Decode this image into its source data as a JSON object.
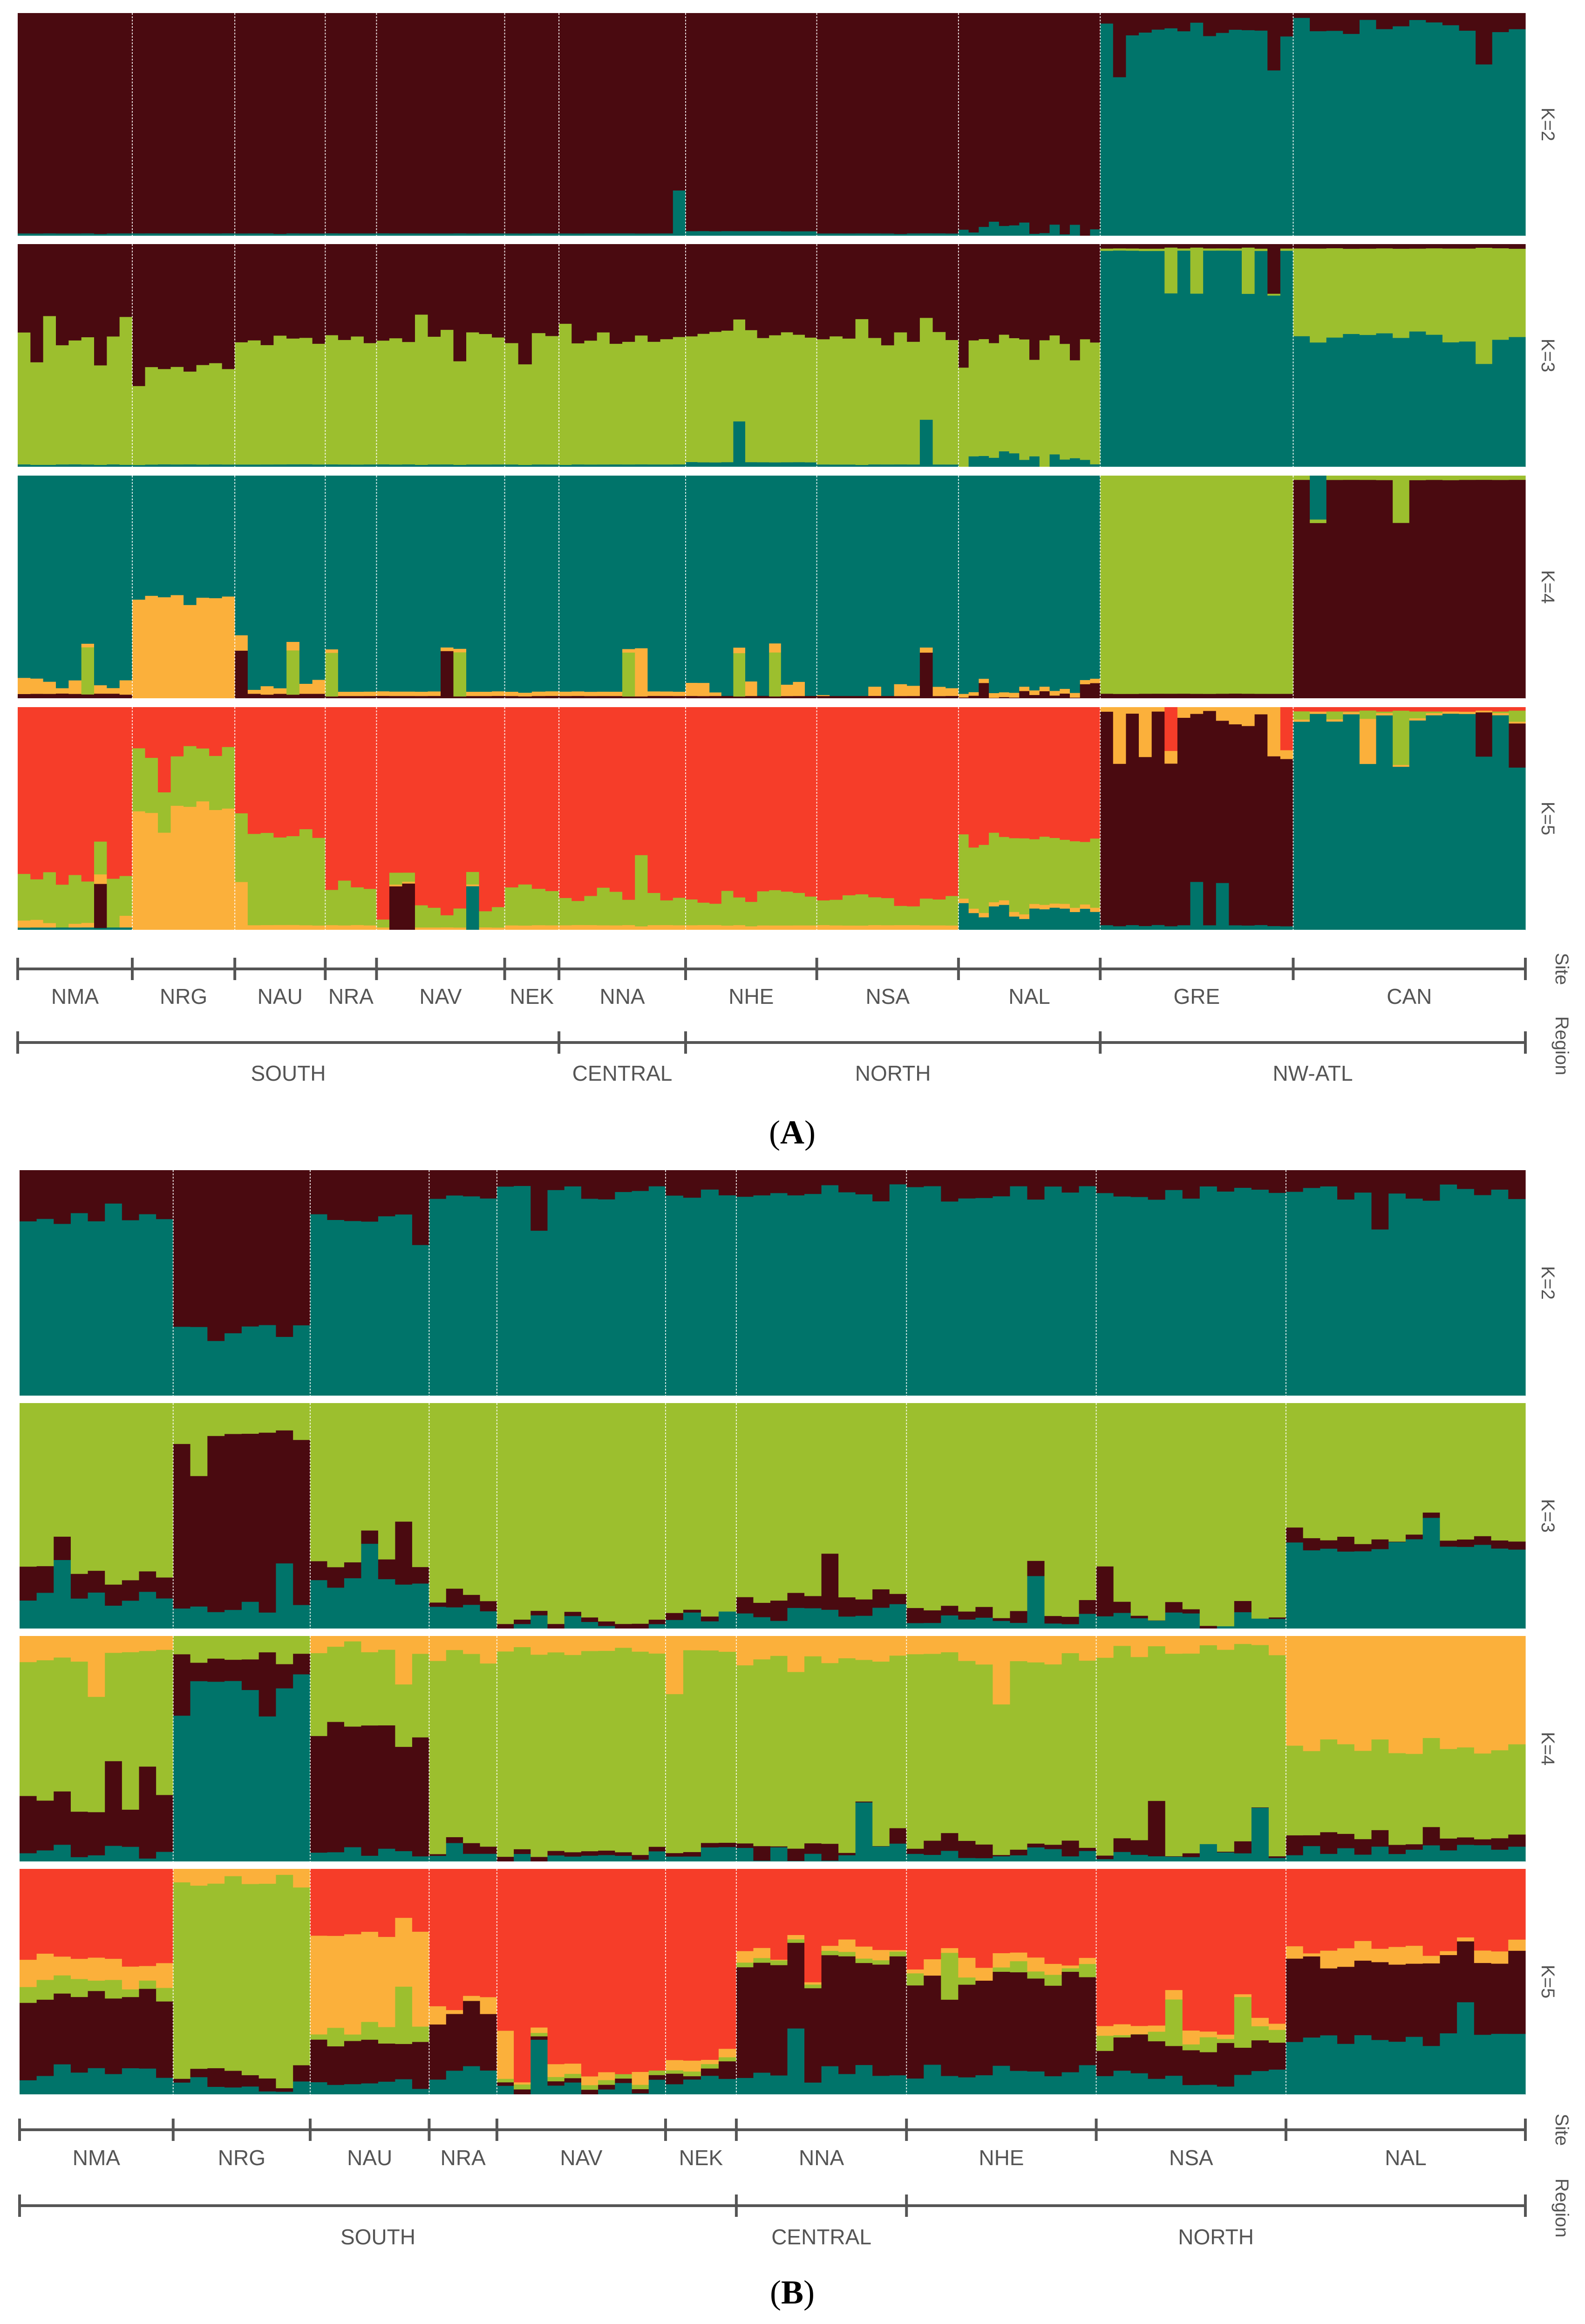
{
  "palette": {
    "dark_maroon": "#4a0a10",
    "teal": "#00746a",
    "green": "#9cbf2e",
    "orange": "#fbb03b",
    "red": "#f63d29",
    "axis": "#555555",
    "separator": "#ffffff"
  },
  "axis_labels": {
    "site": "Site",
    "region": "Region"
  },
  "chart_data": [
    {
      "type": "stacked-bar",
      "panel_label": "A",
      "title": "",
      "y_range": [
        0,
        1
      ],
      "k_labels": [
        "K=2",
        "K=3",
        "K=4",
        "K=5"
      ],
      "sites": [
        {
          "name": "NMA",
          "n": 9
        },
        {
          "name": "NRG",
          "n": 8
        },
        {
          "name": "NAU",
          "n": 7
        },
        {
          "name": "NRA",
          "n": 4
        },
        {
          "name": "NAV",
          "n": 10
        },
        {
          "name": "NEK",
          "n": 4
        },
        {
          "name": "NNA",
          "n": 10
        },
        {
          "name": "NHE",
          "n": 11
        },
        {
          "name": "NSA",
          "n": 11
        },
        {
          "name": "NAL",
          "n": 14
        },
        {
          "name": "GRE",
          "n": 15
        },
        {
          "name": "CAN",
          "n": 14
        }
      ],
      "regions": [
        {
          "name": "SOUTH",
          "sites": [
            "NMA",
            "NRG",
            "NAU",
            "NRA",
            "NAV",
            "NEK"
          ]
        },
        {
          "name": "CENTRAL",
          "sites": [
            "NNA"
          ]
        },
        {
          "name": "NORTH",
          "sites": [
            "NHE",
            "NSA",
            "NAL"
          ]
        },
        {
          "name": "NW-ATL",
          "sites": [
            "GRE",
            "CAN"
          ]
        }
      ],
      "cluster_colors": {
        "K=2": [
          "dark_maroon",
          "teal"
        ],
        "K=3": [
          "dark_maroon",
          "green",
          "teal"
        ],
        "K=4": [
          "teal",
          "orange",
          "green",
          "dark_maroon"
        ],
        "K=5": [
          "red",
          "green",
          "orange",
          "dark_maroon",
          "teal"
        ]
      },
      "site_mean_ancestry": {
        "K=2": [
          [
            0.99,
            0.01
          ],
          [
            0.99,
            0.01
          ],
          [
            0.99,
            0.01
          ],
          [
            0.99,
            0.01
          ],
          [
            0.99,
            0.01
          ],
          [
            0.99,
            0.01
          ],
          [
            0.99,
            0.01
          ],
          [
            0.98,
            0.02
          ],
          [
            0.99,
            0.01
          ],
          [
            0.97,
            0.03
          ],
          [
            0.08,
            0.92
          ],
          [
            0.06,
            0.94
          ]
        ],
        "K=3": [
          [
            0.42,
            0.57,
            0.01
          ],
          [
            0.55,
            0.44,
            0.01
          ],
          [
            0.42,
            0.57,
            0.01
          ],
          [
            0.42,
            0.57,
            0.01
          ],
          [
            0.42,
            0.57,
            0.01
          ],
          [
            0.42,
            0.57,
            0.01
          ],
          [
            0.42,
            0.57,
            0.01
          ],
          [
            0.41,
            0.57,
            0.02
          ],
          [
            0.42,
            0.57,
            0.01
          ],
          [
            0.42,
            0.55,
            0.03
          ],
          [
            0.02,
            0.01,
            0.97
          ],
          [
            0.02,
            0.4,
            0.58
          ]
        ],
        "K=4": [
          [
            0.93,
            0.05,
            0.0,
            0.02
          ],
          [
            0.55,
            0.45,
            0.0,
            0.0
          ],
          [
            0.93,
            0.05,
            0.0,
            0.02
          ],
          [
            0.97,
            0.02,
            0.0,
            0.01
          ],
          [
            0.97,
            0.02,
            0.0,
            0.01
          ],
          [
            0.97,
            0.02,
            0.0,
            0.01
          ],
          [
            0.97,
            0.02,
            0.0,
            0.01
          ],
          [
            0.96,
            0.03,
            0.0,
            0.01
          ],
          [
            0.96,
            0.03,
            0.0,
            0.01
          ],
          [
            0.94,
            0.02,
            0.0,
            0.04
          ],
          [
            0.0,
            0.0,
            0.98,
            0.02
          ],
          [
            0.0,
            0.0,
            0.02,
            0.98
          ]
        ],
        "K=5": [
          [
            0.76,
            0.2,
            0.03,
            0.0,
            0.01
          ],
          [
            0.2,
            0.25,
            0.55,
            0.0,
            0.0
          ],
          [
            0.58,
            0.4,
            0.02,
            0.0,
            0.0
          ],
          [
            0.8,
            0.18,
            0.02,
            0.0,
            0.0
          ],
          [
            0.92,
            0.07,
            0.01,
            0.0,
            0.0
          ],
          [
            0.81,
            0.17,
            0.02,
            0.0,
            0.0
          ],
          [
            0.84,
            0.14,
            0.02,
            0.0,
            0.0
          ],
          [
            0.85,
            0.13,
            0.02,
            0.0,
            0.0
          ],
          [
            0.86,
            0.12,
            0.02,
            0.0,
            0.0
          ],
          [
            0.6,
            0.3,
            0.02,
            0.0,
            0.08
          ],
          [
            0.0,
            0.0,
            0.05,
            0.93,
            0.02
          ],
          [
            0.02,
            0.03,
            0.01,
            0.0,
            0.94
          ]
        ]
      }
    },
    {
      "type": "stacked-bar",
      "panel_label": "B",
      "title": "",
      "y_range": [
        0,
        1
      ],
      "k_labels": [
        "K=2",
        "K=3",
        "K=4",
        "K=5"
      ],
      "sites": [
        {
          "name": "NMA",
          "n": 9
        },
        {
          "name": "NRG",
          "n": 8
        },
        {
          "name": "NAU",
          "n": 7
        },
        {
          "name": "NRA",
          "n": 4
        },
        {
          "name": "NAV",
          "n": 10
        },
        {
          "name": "NEK",
          "n": 4
        },
        {
          "name": "NNA",
          "n": 10
        },
        {
          "name": "NHE",
          "n": 11
        },
        {
          "name": "NSA",
          "n": 11
        },
        {
          "name": "NAL",
          "n": 14
        }
      ],
      "regions": [
        {
          "name": "SOUTH",
          "sites": [
            "NMA",
            "NRG",
            "NAU",
            "NRA",
            "NAV",
            "NEK"
          ]
        },
        {
          "name": "CENTRAL",
          "sites": [
            "NNA"
          ]
        },
        {
          "name": "NORTH",
          "sites": [
            "NHE",
            "NSA",
            "NAL"
          ]
        }
      ],
      "cluster_colors": {
        "K=2": [
          "dark_maroon",
          "teal"
        ],
        "K=3": [
          "green",
          "dark_maroon",
          "teal"
        ],
        "K=4": [
          "orange",
          "green",
          "dark_maroon",
          "teal"
        ],
        "K=5": [
          "red",
          "orange",
          "green",
          "dark_maroon",
          "teal"
        ]
      },
      "site_mean_ancestry": {
        "K=2": [
          [
            0.2,
            0.8
          ],
          [
            0.72,
            0.28
          ],
          [
            0.2,
            0.8
          ],
          [
            0.1,
            0.9
          ],
          [
            0.1,
            0.9
          ],
          [
            0.1,
            0.9
          ],
          [
            0.1,
            0.9
          ],
          [
            0.1,
            0.9
          ],
          [
            0.1,
            0.9
          ],
          [
            0.1,
            0.9
          ]
        ],
        "K=3": [
          [
            0.75,
            0.12,
            0.13
          ],
          [
            0.15,
            0.75,
            0.1
          ],
          [
            0.7,
            0.08,
            0.22
          ],
          [
            0.88,
            0.05,
            0.07
          ],
          [
            0.95,
            0.02,
            0.03
          ],
          [
            0.93,
            0.03,
            0.04
          ],
          [
            0.87,
            0.06,
            0.07
          ],
          [
            0.9,
            0.05,
            0.05
          ],
          [
            0.93,
            0.03,
            0.04
          ],
          [
            0.6,
            0.03,
            0.37
          ]
        ],
        "K=4": [
          [
            0.1,
            0.62,
            0.23,
            0.05
          ],
          [
            0.0,
            0.1,
            0.1,
            0.8
          ],
          [
            0.05,
            0.35,
            0.55,
            0.05
          ],
          [
            0.1,
            0.82,
            0.03,
            0.05
          ],
          [
            0.08,
            0.87,
            0.02,
            0.03
          ],
          [
            0.05,
            0.9,
            0.02,
            0.03
          ],
          [
            0.12,
            0.8,
            0.04,
            0.04
          ],
          [
            0.1,
            0.82,
            0.04,
            0.04
          ],
          [
            0.07,
            0.86,
            0.03,
            0.04
          ],
          [
            0.5,
            0.4,
            0.06,
            0.04
          ]
        ],
        "K=5": [
          [
            0.4,
            0.1,
            0.05,
            0.35,
            0.1
          ],
          [
            0.0,
            0.05,
            0.85,
            0.05,
            0.05
          ],
          [
            0.3,
            0.4,
            0.05,
            0.2,
            0.05
          ],
          [
            0.6,
            0.05,
            0.0,
            0.25,
            0.1
          ],
          [
            0.9,
            0.03,
            0.02,
            0.02,
            0.03
          ],
          [
            0.85,
            0.03,
            0.02,
            0.05,
            0.05
          ],
          [
            0.35,
            0.03,
            0.02,
            0.5,
            0.1
          ],
          [
            0.4,
            0.05,
            0.03,
            0.42,
            0.1
          ],
          [
            0.7,
            0.05,
            0.03,
            0.15,
            0.07
          ],
          [
            0.35,
            0.05,
            0.0,
            0.35,
            0.25
          ]
        ]
      }
    }
  ]
}
